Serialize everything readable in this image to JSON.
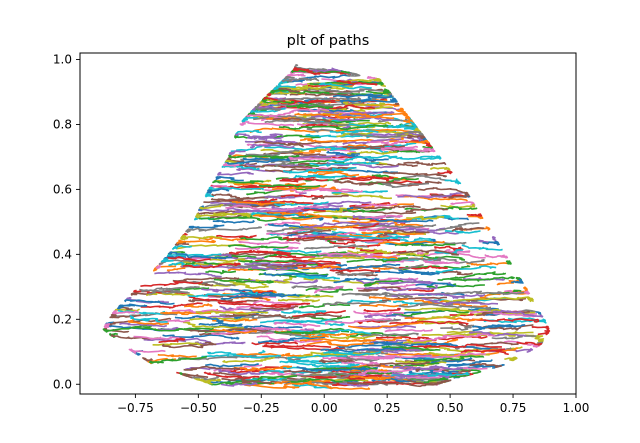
{
  "chart_data": {
    "type": "line",
    "title": "plt of paths",
    "xlabel": "",
    "ylabel": "",
    "xlim": [
      -0.97,
      1.0
    ],
    "ylim": [
      -0.03,
      1.02
    ],
    "xticks": [
      -0.75,
      -0.5,
      -0.25,
      0.0,
      0.25,
      0.5,
      0.75,
      1.0
    ],
    "xtick_labels": [
      "−0.75",
      "−0.50",
      "−0.25",
      "0.00",
      "0.25",
      "0.50",
      "0.75",
      "1.00"
    ],
    "yticks": [
      0.0,
      0.2,
      0.4,
      0.6,
      0.8,
      1.0
    ],
    "ytick_labels": [
      "0.0",
      "0.2",
      "0.4",
      "0.6",
      "0.8",
      "1.0"
    ],
    "grid": false,
    "legend": "none",
    "series_colors": [
      "#1f77b4",
      "#ff7f0e",
      "#2ca02c",
      "#d62728",
      "#9467bd",
      "#8c564b",
      "#e377c2",
      "#7f7f7f",
      "#bcbd22",
      "#17becf"
    ],
    "envelope": {
      "y_top": 0.97,
      "points": [
        {
          "y": 0.0,
          "x_left": -0.45,
          "x_right": 0.45
        },
        {
          "y": 0.06,
          "x_left": -0.68,
          "x_right": 0.72
        },
        {
          "y": 0.12,
          "x_left": -0.8,
          "x_right": 0.86
        },
        {
          "y": 0.17,
          "x_left": -0.88,
          "x_right": 0.9
        },
        {
          "y": 0.22,
          "x_left": -0.84,
          "x_right": 0.86
        },
        {
          "y": 0.3,
          "x_left": -0.74,
          "x_right": 0.8
        },
        {
          "y": 0.4,
          "x_left": -0.62,
          "x_right": 0.72
        },
        {
          "y": 0.5,
          "x_left": -0.52,
          "x_right": 0.64
        },
        {
          "y": 0.6,
          "x_left": -0.46,
          "x_right": 0.56
        },
        {
          "y": 0.7,
          "x_left": -0.38,
          "x_right": 0.46
        },
        {
          "y": 0.8,
          "x_left": -0.34,
          "x_right": 0.36
        },
        {
          "y": 0.88,
          "x_left": -0.24,
          "x_right": 0.28
        },
        {
          "y": 0.94,
          "x_left": -0.16,
          "x_right": 0.22
        },
        {
          "y": 0.97,
          "x_left": -0.12,
          "x_right": 0.04
        }
      ]
    }
  }
}
